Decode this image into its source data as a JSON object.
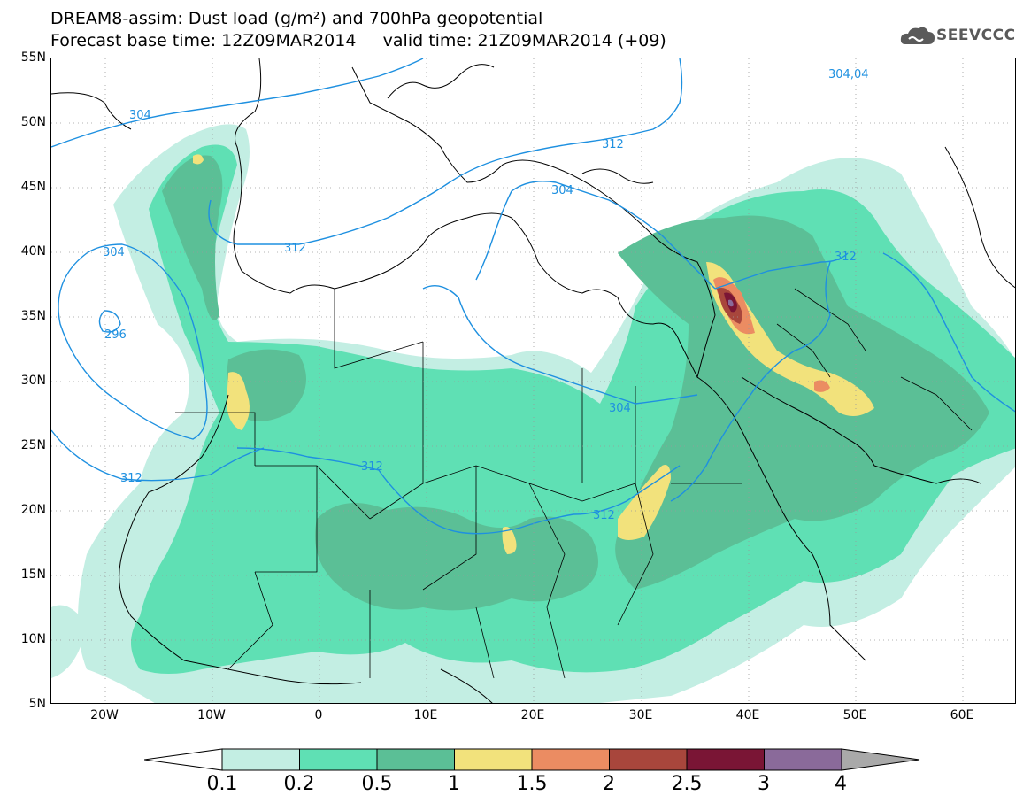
{
  "header": {
    "title_line1": "DREAM8-assim: Dust load (g/m²) and 700hPa geopotential",
    "title_line2": "Forecast base time: 12Z09MAR2014     valid time: 21Z09MAR2014 (+09)"
  },
  "logo": {
    "text": "SEEVCCC",
    "icon": "cloud-logo-icon"
  },
  "map": {
    "lat_labels": [
      "55N",
      "50N",
      "45N",
      "40N",
      "35N",
      "30N",
      "25N",
      "20N",
      "15N",
      "10N",
      "5N"
    ],
    "lon_labels": [
      "20W",
      "10W",
      "0",
      "10E",
      "20E",
      "30E",
      "40E",
      "50E",
      "60E"
    ],
    "lon_range": [
      -25,
      65
    ],
    "lat_range": [
      5,
      55
    ],
    "contour_labels": [
      "304",
      "312",
      "312",
      "304",
      "296",
      "304",
      "312",
      "312",
      "304",
      "312",
      "312",
      "304,04"
    ]
  },
  "colorbar": {
    "levels": [
      "0.1",
      "0.2",
      "0.5",
      "1",
      "1.5",
      "2",
      "2.5",
      "3",
      "4"
    ],
    "colors": [
      "#c3eee3",
      "#5fe0b4",
      "#5bbf96",
      "#f2e27c",
      "#eb8c62",
      "#a8463c",
      "#7a1535",
      "#8a6a9a"
    ]
  },
  "colors": {
    "level1": "#c3eee3",
    "level2": "#5fe0b4",
    "level3": "#5bbf96",
    "level4": "#f2e27c",
    "level5": "#eb8c62",
    "level6": "#a8463c",
    "level7": "#7a1535",
    "level8": "#8a6a9a",
    "contour": "#1e90e0"
  }
}
